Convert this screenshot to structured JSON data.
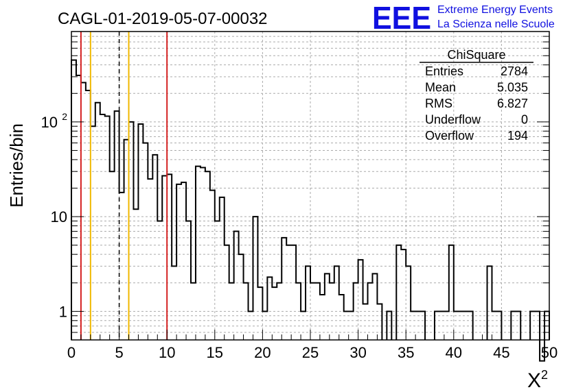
{
  "header": {
    "title": "CAGL-01-2019-05-07-00032"
  },
  "logo": {
    "mark": "EEE",
    "line1": "Extreme Energy Events",
    "line2": "La Scienza nelle Scuole",
    "color": "#1010e0"
  },
  "stats": {
    "name": "ChiSquare",
    "rows": [
      {
        "label": "Entries",
        "value": "2784"
      },
      {
        "label": "Mean",
        "value": "5.035"
      },
      {
        "label": "RMS",
        "value": "6.827"
      },
      {
        "label": "Underflow",
        "value": "0"
      },
      {
        "label": "Overflow",
        "value": "194"
      }
    ]
  },
  "chart_data": {
    "type": "bar",
    "style": "step-histogram",
    "title": "CAGL-01-2019-05-07-00032",
    "xlabel": "X",
    "xlabel_superscript": "2",
    "ylabel": "Entries/bin",
    "xlim": [
      0,
      50
    ],
    "ylim": [
      0.5,
      900
    ],
    "yscale": "log",
    "grid": true,
    "bin_width": 0.5,
    "x_ticks": [
      "0",
      "5",
      "10",
      "15",
      "20",
      "25",
      "30",
      "35",
      "40",
      "45",
      "50"
    ],
    "y_ticks": [
      {
        "value": 1,
        "label": "1"
      },
      {
        "value": 10,
        "label": "10"
      },
      {
        "value": 100,
        "label": "10",
        "exponent": "2"
      }
    ],
    "values": [
      450,
      310,
      260,
      215,
      90,
      160,
      120,
      115,
      30,
      130,
      18,
      65,
      100,
      12,
      95,
      60,
      25,
      45,
      9,
      27,
      28,
      3,
      22,
      23,
      9,
      2,
      34,
      33,
      30,
      19,
      9,
      16,
      5,
      2,
      7,
      4,
      2,
      1,
      10,
      1.8,
      1,
      2.3,
      1.8,
      2,
      6,
      5,
      5,
      2,
      1,
      3,
      2,
      2,
      1.5,
      2.5,
      2,
      3,
      1.5,
      1,
      1,
      2,
      3.5,
      1.2,
      2,
      2.5,
      1.2,
      0,
      1,
      0,
      5,
      4.5,
      3,
      1,
      1,
      1,
      0,
      0,
      1,
      1,
      1,
      5,
      1,
      1,
      1,
      1,
      0,
      0,
      0,
      3,
      1,
      1,
      0,
      0,
      1,
      1,
      0,
      0,
      1,
      1,
      0.3,
      1
    ],
    "reference_lines": [
      {
        "x": 1,
        "color": "#d42020",
        "style": "solid"
      },
      {
        "x": 2,
        "color": "#f0b800",
        "style": "solid"
      },
      {
        "x": 5,
        "color": "#000000",
        "style": "dashed"
      },
      {
        "x": 6,
        "color": "#f0b800",
        "style": "solid"
      },
      {
        "x": 10,
        "color": "#d42020",
        "style": "solid"
      }
    ]
  }
}
